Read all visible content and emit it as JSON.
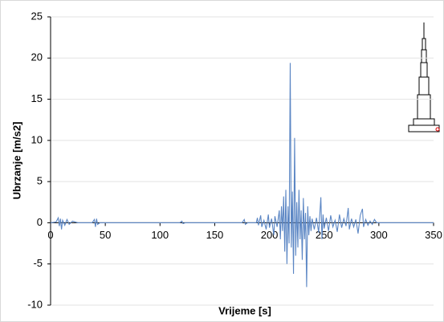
{
  "chart_data": {
    "type": "line",
    "x_label": "Vrijeme [s]",
    "y_label": "Ubrzanje [m/s2]",
    "xlim": [
      0,
      350
    ],
    "xticks": [
      0,
      50,
      100,
      150,
      200,
      250,
      300,
      350
    ],
    "ylim": [
      -10,
      25
    ],
    "yticks": [
      -10,
      -5,
      0,
      5,
      10,
      15,
      20,
      25
    ],
    "grid": true,
    "series": [
      {
        "color": "#5b86c4",
        "x": [
          0,
          5,
          7,
          8,
          9,
          10,
          11,
          13,
          15,
          17,
          20,
          25,
          38,
          40,
          41,
          42,
          43,
          45,
          118,
          120,
          121,
          123,
          175,
          177,
          178,
          180,
          188,
          189,
          190,
          192,
          193,
          195,
          197,
          199,
          200,
          202,
          204,
          205,
          207,
          209,
          210,
          211,
          212,
          213,
          214,
          215,
          216,
          217,
          218,
          219,
          220,
          221,
          222,
          223,
          224,
          225,
          226,
          227,
          228,
          229,
          230,
          231,
          232,
          233,
          234,
          235,
          236,
          237,
          238,
          239,
          241,
          243,
          245,
          247,
          248,
          249,
          250,
          252,
          254,
          256,
          258,
          260,
          262,
          264,
          266,
          268,
          270,
          272,
          273,
          275,
          277,
          279,
          281,
          283,
          285,
          286,
          288,
          290,
          292,
          294,
          296,
          298,
          300,
          350
        ],
        "values": [
          0,
          0.1,
          0.6,
          -0.4,
          0.5,
          -0.8,
          0.3,
          -0.3,
          0.4,
          -0.2,
          0.2,
          0,
          0,
          0.4,
          -0.5,
          0.5,
          -0.2,
          0,
          0,
          0.2,
          -0.1,
          0,
          0,
          0.4,
          -0.2,
          0,
          0,
          0.6,
          -0.3,
          0.9,
          -0.5,
          0.3,
          -0.8,
          1.0,
          -0.6,
          0.5,
          -1.5,
          0.8,
          -0.5,
          1.5,
          -2.0,
          2.0,
          -1.0,
          3.2,
          -3.5,
          4.0,
          -5.0,
          2.0,
          -2.5,
          19.4,
          -3.0,
          3.8,
          -6.2,
          10.3,
          -4.0,
          2.5,
          -3.0,
          4.0,
          -2.0,
          1.5,
          -4.5,
          3.0,
          -2.0,
          1.2,
          -7.8,
          2.0,
          -1.5,
          0.8,
          -1.0,
          0.5,
          -0.8,
          0.6,
          -1.2,
          3.1,
          -2.0,
          1.0,
          -0.7,
          0.6,
          -1.0,
          0.9,
          -0.5,
          0.3,
          -1.1,
          1.0,
          -0.6,
          0.5,
          -0.4,
          1.8,
          -0.8,
          0.5,
          -0.5,
          0.4,
          -1.3,
          0.9,
          1.7,
          -0.5,
          0.4,
          -0.3,
          0.2,
          -0.2,
          0.4,
          0,
          0,
          0
        ]
      }
    ]
  }
}
